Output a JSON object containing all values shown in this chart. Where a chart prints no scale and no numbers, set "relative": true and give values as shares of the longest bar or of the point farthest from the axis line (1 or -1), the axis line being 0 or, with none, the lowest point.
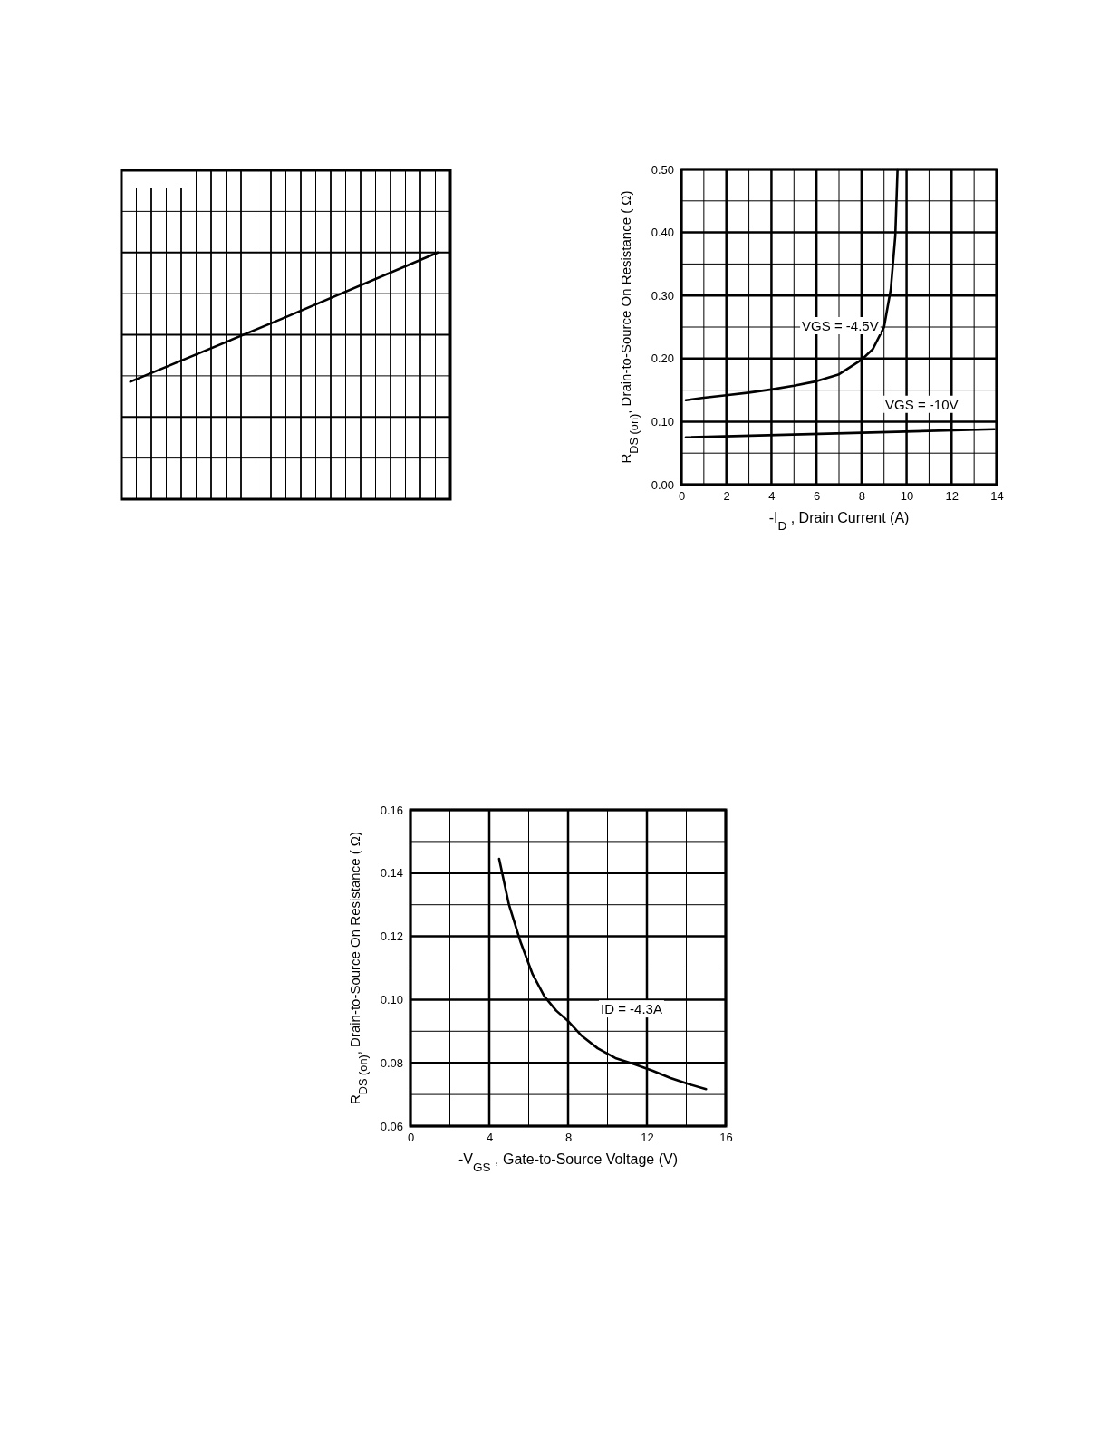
{
  "chart_data": [
    {
      "type": "line",
      "relative": true,
      "grid": true,
      "categories": [
        null,
        null,
        null
      ],
      "color": "#000000",
      "values": [
        0.476,
        0.735,
        1
      ]
    },
    {
      "type": "line",
      "xlabel": "-I$_{D}$ , Drain Current (A)",
      "ylabel": "R$_{DS (on)}$, Drain-to-Source On Resistance ( Ω)",
      "xlim": [
        0,
        14
      ],
      "xticks": [
        0,
        2,
        4,
        6,
        8,
        10,
        12,
        14
      ],
      "ylim": [
        0,
        0.5
      ],
      "yticks": [
        {
          "value": 0,
          "label": "0.00"
        },
        {
          "value": 0.1,
          "label": "0.10"
        },
        {
          "value": 0.2,
          "label": "0.20"
        },
        {
          "value": 0.3,
          "label": "0.30"
        },
        {
          "value": 0.4,
          "label": "0.40"
        },
        {
          "value": 0.5,
          "label": "0.50"
        }
      ],
      "grid": true,
      "series": [
        {
          "name": "VGS = -4.5V",
          "color": "#000000",
          "x": [
            0.2,
            1,
            2,
            3,
            4,
            5,
            6,
            7,
            8,
            8.5,
            9,
            9.3,
            9.5,
            9.6
          ],
          "values": [
            0.134,
            0.138,
            0.142,
            0.146,
            0.151,
            0.157,
            0.164,
            0.175,
            0.198,
            0.215,
            0.25,
            0.31,
            0.395,
            0.5
          ]
        },
        {
          "name": "VGS = -10V",
          "color": "#000000",
          "x": [
            0.2,
            13.9
          ],
          "values": [
            0.075,
            0.088
          ]
        }
      ]
    },
    {
      "type": "line",
      "xlabel": "-V$_{GS}$ , Gate-to-Source Voltage (V)",
      "ylabel": "R$_{DS (on)}$, Drain-to-Source On Resistance ( Ω)",
      "xlim": [
        0,
        16
      ],
      "xticks": [
        0,
        4,
        8,
        12,
        16
      ],
      "ylim": [
        0.06,
        0.16
      ],
      "yticks": [
        {
          "value": 0.06,
          "label": "0.06"
        },
        {
          "value": 0.08,
          "label": "0.08"
        },
        {
          "value": 0.1,
          "label": "0.10"
        },
        {
          "value": 0.12,
          "label": "0.12"
        },
        {
          "value": 0.14,
          "label": "0.14"
        },
        {
          "value": 0.16,
          "label": "0.16"
        }
      ],
      "grid": true,
      "series": [
        {
          "name": "ID = -4.3A",
          "color": "#000000",
          "x": [
            4.5,
            5,
            5.6,
            6.2,
            6.8,
            7.4,
            8,
            8.7,
            9.5,
            10.4,
            11.4,
            12.3,
            13.2,
            14.1,
            15
          ],
          "values": [
            0.1445,
            0.13,
            0.118,
            0.108,
            0.101,
            0.0965,
            0.0932,
            0.0885,
            0.0846,
            0.0815,
            0.0795,
            0.0775,
            0.0752,
            0.0733,
            0.0717
          ]
        }
      ]
    }
  ]
}
